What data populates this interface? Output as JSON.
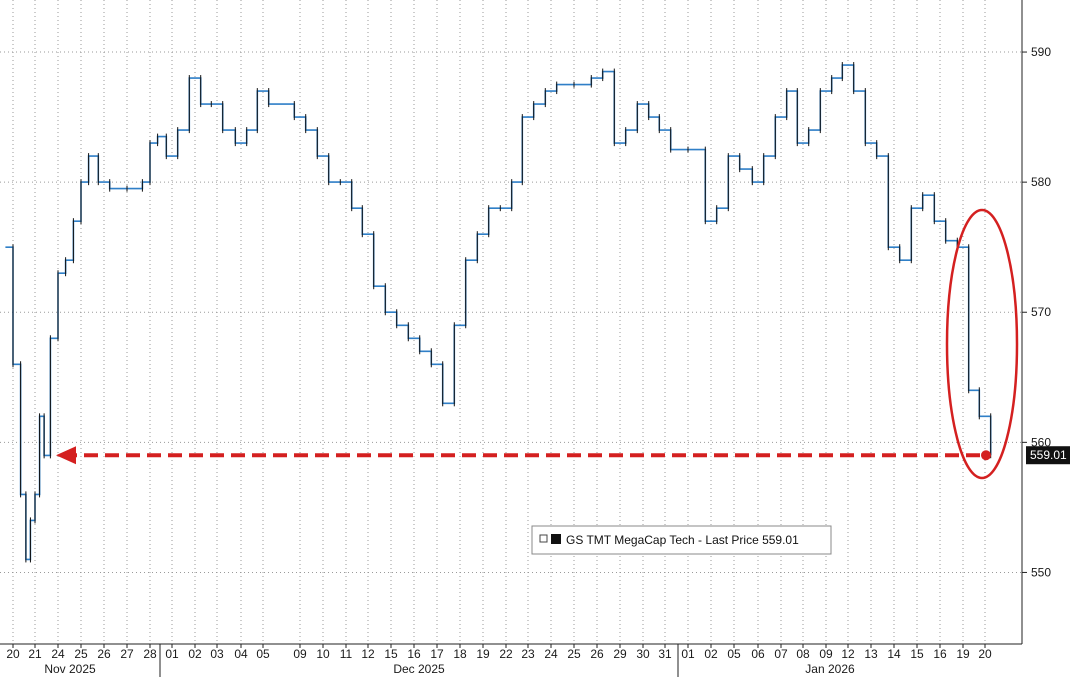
{
  "chart_data": {
    "type": "line",
    "style": "step",
    "series": [
      {
        "name": "GS TMT MegaCap Tech",
        "points": [
          [
            "20",
            575
          ],
          [
            "20",
            566
          ],
          [
            "20",
            556
          ],
          [
            "21",
            551
          ],
          [
            "21",
            554
          ],
          [
            "21",
            556
          ],
          [
            "21",
            562
          ],
          [
            "21",
            559
          ],
          [
            "24",
            568
          ],
          [
            "24",
            573
          ],
          [
            "24",
            574
          ],
          [
            "25",
            577
          ],
          [
            "25",
            580
          ],
          [
            "25",
            582
          ],
          [
            "26",
            580
          ],
          [
            "26",
            579.5
          ],
          [
            "27",
            579.5
          ],
          [
            "28",
            580
          ],
          [
            "28",
            583
          ],
          [
            "28",
            583.5
          ],
          [
            "01",
            582
          ],
          [
            "01",
            584
          ],
          [
            "02",
            588
          ],
          [
            "02",
            586
          ],
          [
            "03",
            586
          ],
          [
            "03",
            584
          ],
          [
            "04",
            583
          ],
          [
            "04",
            584
          ],
          [
            "05",
            587
          ],
          [
            "05",
            586
          ],
          [
            "09",
            585
          ],
          [
            "09",
            584
          ],
          [
            "10",
            582
          ],
          [
            "10",
            580
          ],
          [
            "11",
            580
          ],
          [
            "11",
            578
          ],
          [
            "12",
            576
          ],
          [
            "12",
            572
          ],
          [
            "15",
            570
          ],
          [
            "15",
            569
          ],
          [
            "16",
            568
          ],
          [
            "16",
            567
          ],
          [
            "17",
            566
          ],
          [
            "17",
            563
          ],
          [
            "18",
            569
          ],
          [
            "18",
            574
          ],
          [
            "19",
            576
          ],
          [
            "19",
            578
          ],
          [
            "22",
            578
          ],
          [
            "22",
            580
          ],
          [
            "23",
            585
          ],
          [
            "23",
            586
          ],
          [
            "24",
            587
          ],
          [
            "24",
            587.5
          ],
          [
            "25",
            587.5
          ],
          [
            "26",
            588
          ],
          [
            "26",
            588.5
          ],
          [
            "29",
            583
          ],
          [
            "29",
            584
          ],
          [
            "30",
            586
          ],
          [
            "30",
            585
          ],
          [
            "31",
            584
          ],
          [
            "31",
            582.5
          ],
          [
            "01",
            582.5
          ],
          [
            "02",
            577
          ],
          [
            "02",
            578
          ],
          [
            "05",
            582
          ],
          [
            "05",
            581
          ],
          [
            "06",
            580
          ],
          [
            "06",
            582
          ],
          [
            "07",
            585
          ],
          [
            "07",
            587
          ],
          [
            "08",
            583
          ],
          [
            "08",
            584
          ],
          [
            "09",
            587
          ],
          [
            "09",
            588
          ],
          [
            "12",
            589
          ],
          [
            "12",
            587
          ],
          [
            "13",
            583
          ],
          [
            "13",
            582
          ],
          [
            "14",
            575
          ],
          [
            "14",
            574
          ],
          [
            "15",
            578
          ],
          [
            "15",
            579
          ],
          [
            "16",
            577
          ],
          [
            "16",
            575.5
          ],
          [
            "19",
            575
          ],
          [
            "19",
            564
          ],
          [
            "20",
            562
          ],
          [
            "20",
            559.01
          ]
        ]
      }
    ],
    "x_tick_labels": [
      "20",
      "21",
      "24",
      "25",
      "26",
      "27",
      "28",
      "01",
      "02",
      "03",
      "04",
      "05",
      "09",
      "10",
      "11",
      "12",
      "15",
      "16",
      "17",
      "18",
      "19",
      "22",
      "23",
      "24",
      "25",
      "26",
      "29",
      "30",
      "31",
      "01",
      "02",
      "05",
      "06",
      "07",
      "08",
      "09",
      "12",
      "13",
      "14",
      "15",
      "16",
      "19",
      "20"
    ],
    "month_labels": [
      "Nov 2025",
      "Dec 2025",
      "Jan 2026"
    ],
    "y_ticks": [
      550,
      560,
      570,
      580,
      590
    ],
    "ylim": [
      544.5,
      594
    ],
    "last_price": 559.01,
    "last_price_label": "559.01",
    "legend": {
      "text": "GS TMT MegaCap Tech - Last Price 559.01",
      "placement": "bottom-right"
    },
    "annotations": [
      {
        "type": "dashed-arrow",
        "color": "#d42020",
        "from_category": "20",
        "from_value": 559.01,
        "to_category": "21",
        "to_value": 559.01
      },
      {
        "type": "ellipse",
        "color": "#d42020",
        "around_categories": [
          "19",
          "20"
        ],
        "value_range": [
          558,
          578
        ]
      }
    ],
    "grid": true,
    "y_axis_position": "right",
    "colors": {
      "line": "#2f7fc7",
      "grid": "#9a9a9a",
      "annotation": "#d42020",
      "price_tag": "#111111"
    }
  }
}
